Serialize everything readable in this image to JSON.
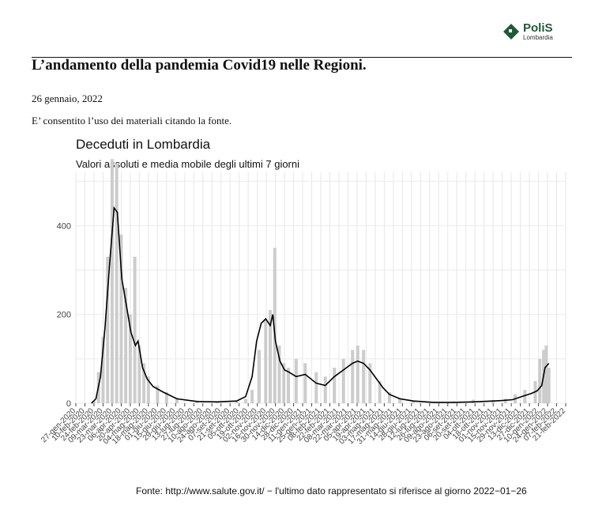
{
  "brand": {
    "name": "PoliS",
    "subtitle": "Lombardia",
    "color": "#1f5a37"
  },
  "header": {
    "title": "L’andamento della pandemia Covid19 nelle Regioni.",
    "date": "26 gennaio, 2022",
    "note": "E’ consentito l’uso dei materiali citando la fonte."
  },
  "chart_data": {
    "type": "bar",
    "title": "Deceduti in Lombardia",
    "subtitle": "Valori assoluti e media mobile degli ultimi 7 giorni",
    "ylim": [
      0,
      520
    ],
    "yticks": [
      0,
      200,
      400
    ],
    "grid": true,
    "bar_color": "#cccccc",
    "line_color": "#000000",
    "x_range": [
      "2020-01-27",
      "2022-02-21"
    ],
    "xtick_labels": [
      "27-gen-2020",
      "10-feb-2020",
      "24-feb-2020",
      "09-mar-2020",
      "23-mar-2020",
      "06-apr-2020",
      "20-apr-2020",
      "04-mag-2020",
      "18-mag-2020",
      "01-giu-2020",
      "15-giu-2020",
      "29-giu-2020",
      "13-lug-2020",
      "27-lug-2020",
      "10-ago-2020",
      "24-ago-2020",
      "07-set-2020",
      "21-set-2020",
      "05-ott-2020",
      "19-ott-2020",
      "02-nov-2020",
      "16-nov-2020",
      "30-nov-2020",
      "14-dic-2020",
      "28-dic-2020",
      "11-gen-2021",
      "25-gen-2021",
      "08-feb-2021",
      "22-feb-2021",
      "08-mar-2021",
      "22-mar-2021",
      "05-apr-2021",
      "19-apr-2021",
      "03-mag-2021",
      "17-mag-2021",
      "31-mag-2021",
      "14-giu-2021",
      "28-giu-2021",
      "12-lug-2021",
      "26-lug-2021",
      "09-ago-2021",
      "23-ago-2021",
      "06-set-2021",
      "20-set-2021",
      "04-ott-2021",
      "18-ott-2021",
      "01-nov-2021",
      "15-nov-2021",
      "29-nov-2021",
      "13-dic-2021",
      "27-dic-2021",
      "10-gen-2022",
      "24-gen-2022",
      "07-feb-2022",
      "21-feb-2022"
    ],
    "series": [
      {
        "kind": "bars",
        "x": [
          "2020-02-24",
          "2020-03-02",
          "2020-03-09",
          "2020-03-16",
          "2020-03-23",
          "2020-03-30",
          "2020-04-06",
          "2020-04-13",
          "2020-04-20",
          "2020-04-27",
          "2020-05-04",
          "2020-05-11",
          "2020-05-18",
          "2020-06-01",
          "2020-06-15",
          "2020-07-01",
          "2020-08-01",
          "2020-09-01",
          "2020-10-01",
          "2020-10-15",
          "2020-10-25",
          "2020-11-05",
          "2020-11-15",
          "2020-11-22",
          "2020-11-29",
          "2020-12-06",
          "2020-12-13",
          "2020-12-20",
          "2021-01-01",
          "2021-01-15",
          "2021-02-01",
          "2021-02-15",
          "2021-03-01",
          "2021-03-15",
          "2021-03-29",
          "2021-04-06",
          "2021-04-15",
          "2021-04-25",
          "2021-05-10",
          "2021-05-25",
          "2021-06-10",
          "2021-07-01",
          "2021-08-01",
          "2021-09-01",
          "2021-10-01",
          "2021-11-01",
          "2021-11-20",
          "2021-12-05",
          "2021-12-20",
          "2022-01-05",
          "2022-01-12",
          "2022-01-18",
          "2022-01-22",
          "2022-01-26"
        ],
        "values": [
          5,
          70,
          150,
          330,
          550,
          540,
          380,
          260,
          200,
          330,
          130,
          90,
          60,
          40,
          25,
          12,
          6,
          4,
          5,
          10,
          30,
          120,
          190,
          210,
          350,
          130,
          90,
          80,
          100,
          90,
          70,
          60,
          80,
          100,
          120,
          130,
          120,
          90,
          50,
          25,
          12,
          5,
          3,
          4,
          8,
          7,
          10,
          20,
          30,
          50,
          100,
          120,
          130,
          80
        ]
      },
      {
        "kind": "line",
        "name": "media mobile 7 giorni",
        "x": [
          "2020-02-20",
          "2020-02-27",
          "2020-03-05",
          "2020-03-12",
          "2020-03-19",
          "2020-03-26",
          "2020-03-31",
          "2020-04-07",
          "2020-04-14",
          "2020-04-21",
          "2020-04-28",
          "2020-05-02",
          "2020-05-09",
          "2020-05-16",
          "2020-05-25",
          "2020-06-10",
          "2020-07-01",
          "2020-08-01",
          "2020-09-01",
          "2020-10-01",
          "2020-10-15",
          "2020-10-25",
          "2020-11-01",
          "2020-11-08",
          "2020-11-15",
          "2020-11-22",
          "2020-11-26",
          "2020-11-30",
          "2020-12-07",
          "2020-12-14",
          "2020-12-21",
          "2021-01-01",
          "2021-01-15",
          "2021-02-01",
          "2021-02-15",
          "2021-03-01",
          "2021-03-15",
          "2021-03-29",
          "2021-04-06",
          "2021-04-15",
          "2021-04-25",
          "2021-05-05",
          "2021-05-15",
          "2021-05-25",
          "2021-06-10",
          "2021-07-01",
          "2021-08-01",
          "2021-09-01",
          "2021-10-01",
          "2021-11-01",
          "2021-11-15",
          "2021-12-01",
          "2021-12-15",
          "2021-12-30",
          "2022-01-08",
          "2022-01-15",
          "2022-01-20",
          "2022-01-26"
        ],
        "values": [
          0,
          10,
          60,
          170,
          310,
          440,
          430,
          280,
          220,
          160,
          130,
          140,
          80,
          55,
          38,
          25,
          10,
          4,
          3,
          5,
          15,
          60,
          140,
          180,
          190,
          175,
          200,
          140,
          95,
          75,
          70,
          60,
          65,
          45,
          40,
          60,
          75,
          90,
          95,
          90,
          75,
          55,
          35,
          20,
          10,
          5,
          2,
          2,
          3,
          5,
          6,
          8,
          15,
          22,
          28,
          40,
          80,
          90
        ]
      }
    ]
  },
  "footer": {
    "source": "Fonte: http://www.salute.gov.it/ − l'ultimo dato rappresentato si riferisce al giorno 2022−01−26"
  }
}
